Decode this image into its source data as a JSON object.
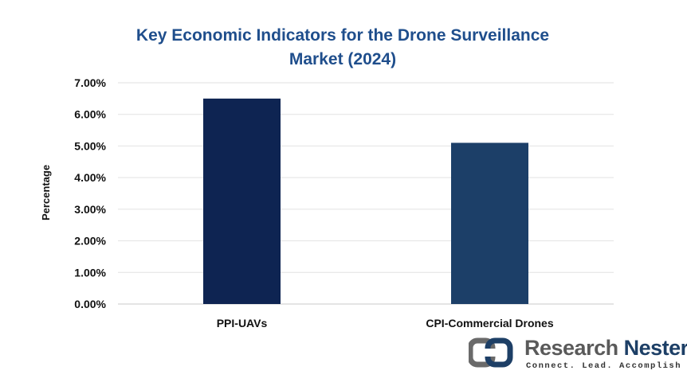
{
  "chart_data": {
    "type": "bar",
    "title": "Key Economic Indicators for the Drone Surveillance Market (2024)",
    "xlabel": "",
    "ylabel": "Percentage",
    "categories": [
      "PPI-UAVs",
      "CPI-Commercial Drones"
    ],
    "values": [
      6.5,
      5.1
    ],
    "bar_colors": [
      "#0e2452",
      "#1c3f68"
    ],
    "ylim": [
      0,
      7
    ],
    "yticks": [
      "0.00%",
      "1.00%",
      "2.00%",
      "3.00%",
      "4.00%",
      "5.00%",
      "6.00%",
      "7.00%"
    ],
    "grid": true,
    "legend": "none"
  },
  "brand": {
    "name_part1": "Research",
    "name_part2": "Nester",
    "tagline": "Connect. Lead. Accomplish",
    "logo_icon": "research-nester-logo-icon"
  }
}
